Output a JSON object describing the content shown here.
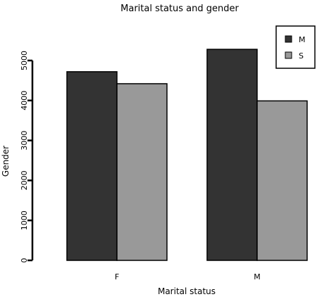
{
  "chart_data": {
    "type": "bar",
    "title": "Marital status and gender",
    "xlabel": "Marital status",
    "ylabel": "Gender",
    "categories": [
      "F",
      "M"
    ],
    "series": [
      {
        "name": "M",
        "values": [
          4720,
          5280
        ],
        "color": "#333333"
      },
      {
        "name": "S",
        "values": [
          4420,
          3990
        ],
        "color": "#999999"
      }
    ],
    "ylim": [
      0,
      5000
    ],
    "yticks": [
      "0",
      "1000",
      "2000",
      "3000",
      "4000",
      "5000"
    ],
    "legend_position": "top-right",
    "grid": false
  }
}
